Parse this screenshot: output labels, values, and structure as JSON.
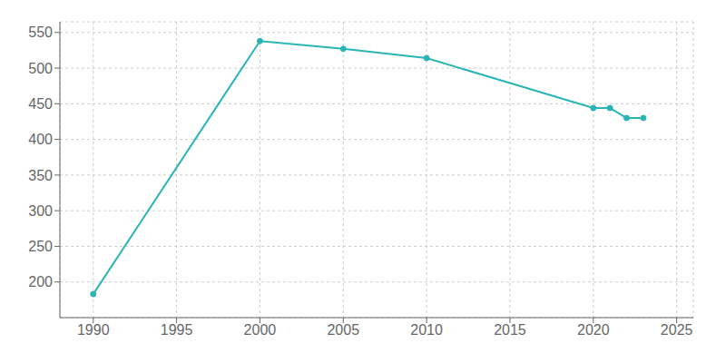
{
  "chart_data": {
    "type": "line",
    "x": [
      1990,
      2000,
      2005,
      2010,
      2020,
      2021,
      2022,
      2023
    ],
    "values": [
      183,
      538,
      527,
      514,
      444,
      444,
      430,
      430
    ],
    "color": "#2ab5b5",
    "marker": "o",
    "xlim": [
      1988,
      2026
    ],
    "xticks": [
      1990,
      1995,
      2000,
      2005,
      2010,
      2015,
      2020,
      2025
    ],
    "ylim": [
      150,
      565
    ],
    "yticks": [
      200,
      250,
      300,
      350,
      400,
      450,
      500,
      550
    ],
    "grid": true
  }
}
